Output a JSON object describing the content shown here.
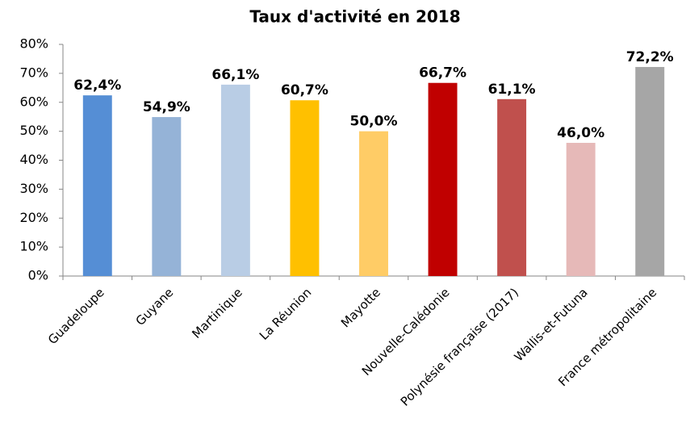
{
  "chart_data": {
    "type": "bar",
    "title": "Taux d'activité en 2018",
    "categories": [
      "Guadeloupe",
      "Guyane",
      "Martinique",
      "La Réunion",
      "Mayotte",
      "Nouvelle-Calédonie",
      "Polynésie française (2017)",
      "Wallis-et-Futuna",
      "France métropolitaine"
    ],
    "values": [
      62.4,
      54.9,
      66.1,
      60.7,
      50.0,
      66.7,
      61.1,
      46.0,
      72.2
    ],
    "value_labels": [
      "62,4%",
      "54,9%",
      "66,1%",
      "60,7%",
      "50,0%",
      "66,7%",
      "61,1%",
      "46,0%",
      "72,2%"
    ],
    "colors": [
      "#558ed5",
      "#95b3d7",
      "#b9cde5",
      "#ffc000",
      "#ffcc66",
      "#c00000",
      "#c0504d",
      "#e6b9b8",
      "#a6a6a6"
    ],
    "ylim": [
      0,
      80
    ],
    "yticks": [
      {
        "value": 0,
        "label": "0%"
      },
      {
        "value": 10,
        "label": "10%"
      },
      {
        "value": 20,
        "label": "20%"
      },
      {
        "value": 30,
        "label": "30%"
      },
      {
        "value": 40,
        "label": "40%"
      },
      {
        "value": 50,
        "label": "50%"
      },
      {
        "value": 60,
        "label": "60%"
      },
      {
        "value": 70,
        "label": "70%"
      },
      {
        "value": 80,
        "label": "80%"
      }
    ],
    "grid": false
  }
}
